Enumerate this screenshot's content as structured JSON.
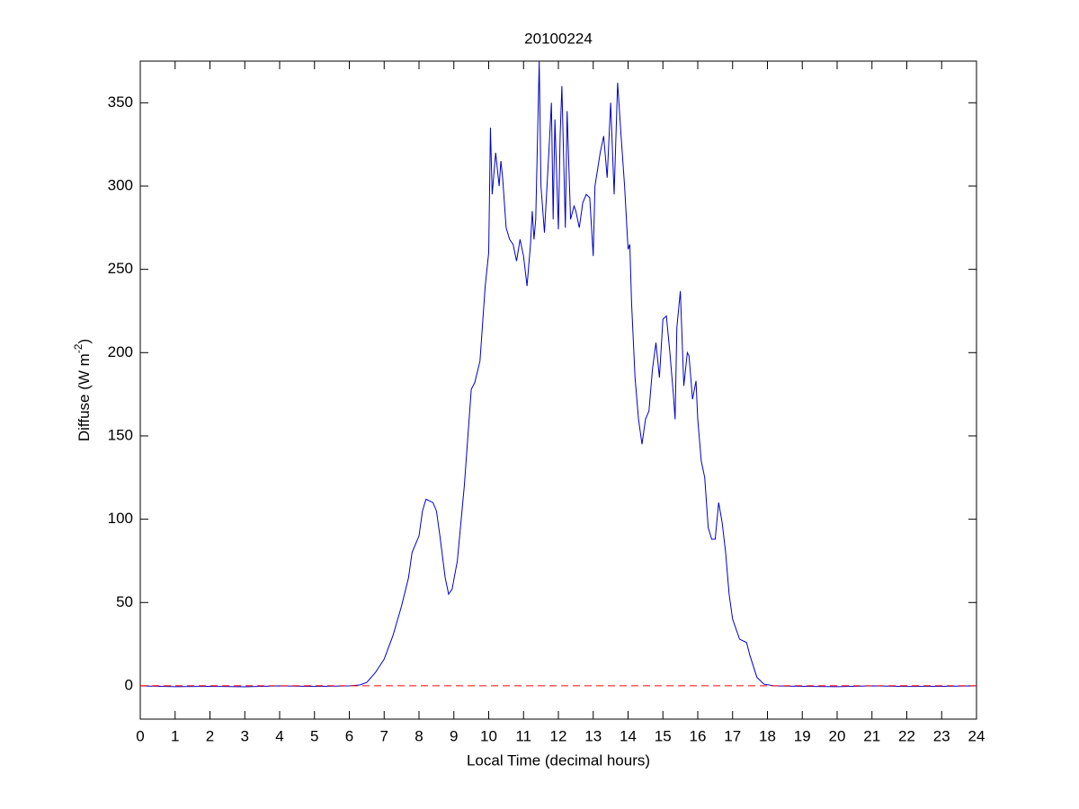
{
  "chart_data": {
    "type": "line",
    "title": "20100224",
    "xlabel": "Local Time (decimal hours)",
    "ylabel": {
      "text": "Diffuse (W m",
      "sup": "-2",
      "close": ")"
    },
    "xlim": [
      0,
      24
    ],
    "ylim": [
      -20,
      375
    ],
    "xticks": [
      0,
      1,
      2,
      3,
      4,
      5,
      6,
      7,
      8,
      9,
      10,
      11,
      12,
      13,
      14,
      15,
      16,
      17,
      18,
      19,
      20,
      21,
      22,
      23,
      24
    ],
    "yticks": [
      0,
      50,
      100,
      150,
      200,
      250,
      300,
      350
    ],
    "reference_line": {
      "y": 0,
      "color": "#ff0000",
      "dashed": true
    },
    "series": [
      {
        "color": "#0000c8",
        "x": [
          0,
          1,
          2,
          3,
          4,
          5,
          6,
          6.3,
          6.5,
          6.75,
          7.0,
          7.25,
          7.5,
          7.7,
          7.8,
          8.0,
          8.1,
          8.2,
          8.4,
          8.5,
          8.6,
          8.75,
          8.85,
          8.95,
          9.1,
          9.3,
          9.5,
          9.6,
          9.75,
          9.9,
          10.0,
          10.05,
          10.1,
          10.2,
          10.3,
          10.35,
          10.4,
          10.5,
          10.6,
          10.7,
          10.8,
          10.9,
          11.0,
          11.1,
          11.2,
          11.25,
          11.3,
          11.35,
          11.45,
          11.5,
          11.6,
          11.7,
          11.8,
          11.85,
          11.9,
          12.0,
          12.05,
          12.1,
          12.2,
          12.25,
          12.35,
          12.45,
          12.5,
          12.6,
          12.7,
          12.8,
          12.9,
          13.0,
          13.05,
          13.2,
          13.3,
          13.4,
          13.5,
          13.6,
          13.7,
          13.8,
          13.9,
          14.0,
          14.05,
          14.1,
          14.2,
          14.3,
          14.4,
          14.5,
          14.6,
          14.7,
          14.8,
          14.9,
          15.0,
          15.1,
          15.2,
          15.3,
          15.35,
          15.4,
          15.5,
          15.6,
          15.7,
          15.75,
          15.85,
          15.95,
          16.0,
          16.1,
          16.2,
          16.3,
          16.4,
          16.5,
          16.6,
          16.7,
          16.8,
          16.9,
          17.0,
          17.2,
          17.4,
          17.5,
          17.7,
          17.9,
          18.2,
          19,
          20,
          21,
          22,
          23,
          24
        ],
        "values": [
          0,
          -0.5,
          -0.3,
          -0.6,
          0,
          -0.4,
          0,
          0.5,
          2,
          8,
          16,
          30,
          48,
          65,
          80,
          90,
          105,
          112,
          110,
          105,
          90,
          65,
          55,
          58,
          75,
          120,
          178,
          182,
          195,
          240,
          260,
          335,
          295,
          320,
          300,
          315,
          305,
          275,
          268,
          265,
          255,
          268,
          258,
          240,
          265,
          285,
          268,
          280,
          375,
          300,
          272,
          310,
          350,
          280,
          340,
          274,
          330,
          360,
          275,
          345,
          280,
          288,
          285,
          275,
          290,
          295,
          293,
          258,
          300,
          320,
          330,
          305,
          350,
          295,
          362,
          330,
          300,
          262,
          265,
          230,
          185,
          160,
          145,
          160,
          165,
          190,
          206,
          185,
          220,
          222,
          200,
          175,
          160,
          215,
          237,
          180,
          200,
          198,
          172,
          183,
          160,
          135,
          125,
          95,
          88,
          88,
          110,
          98,
          80,
          55,
          40,
          28,
          26,
          18,
          5,
          1,
          0,
          -0.3,
          -0.5,
          0,
          -0.4,
          -0.3,
          0
        ]
      }
    ]
  }
}
